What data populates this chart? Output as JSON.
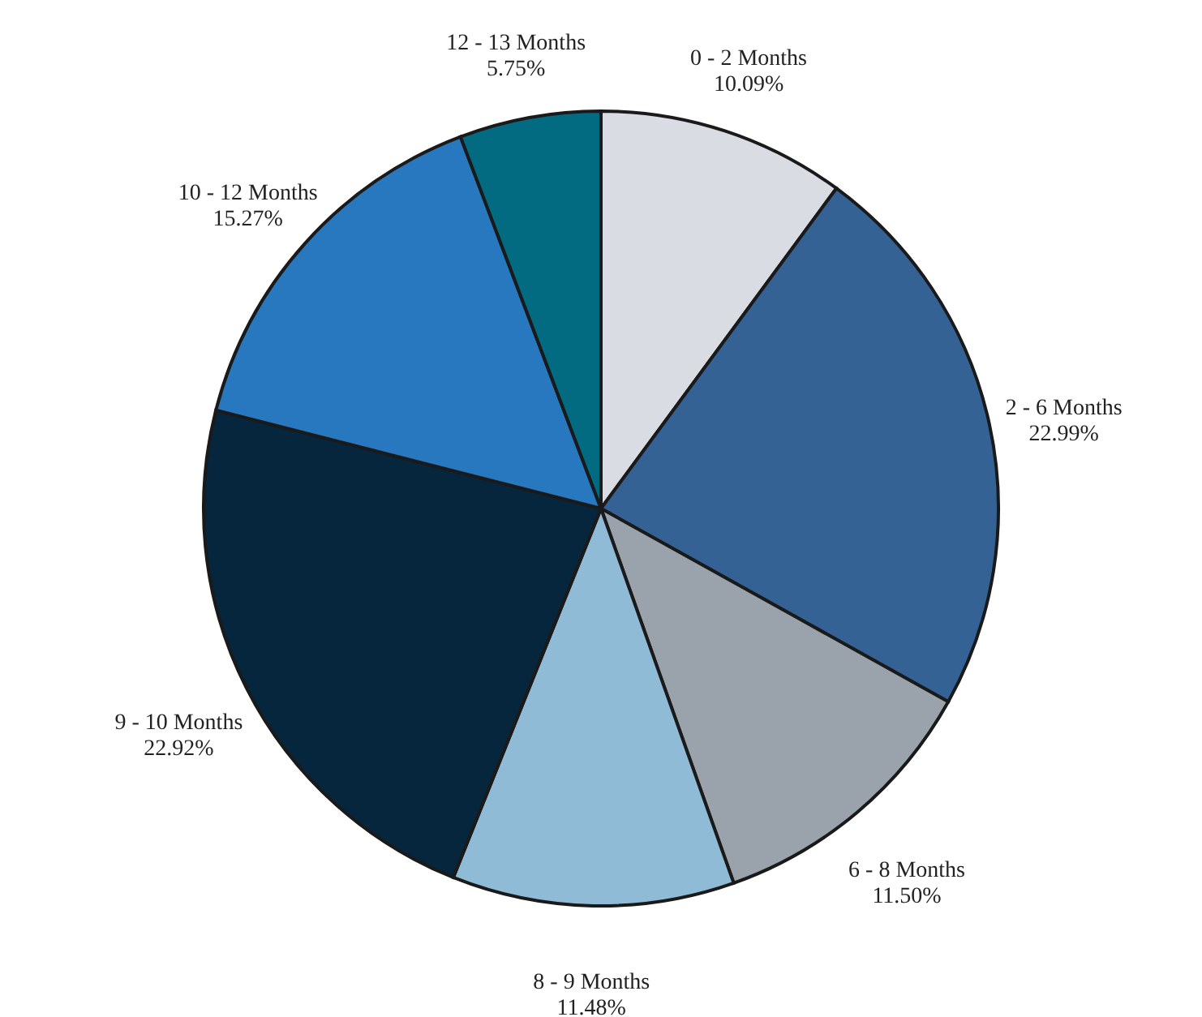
{
  "chart_data": {
    "type": "pie",
    "categories": [
      "0 - 2 Months",
      "2 - 6 Months",
      "6 - 8 Months",
      "8 - 9 Months",
      "9 - 10 Months",
      "10 - 12 Months",
      "12 - 13 Months"
    ],
    "values": [
      10.09,
      22.99,
      11.5,
      11.48,
      22.92,
      15.27,
      5.75
    ],
    "colors": [
      "#d9dce2",
      "#356295",
      "#9aa2ab",
      "#8fbbd7",
      "#06263d",
      "#2878bf",
      "#036b81"
    ],
    "value_labels": [
      "10.09%",
      "22.99%",
      "11.50%",
      "11.48%",
      "22.92%",
      "15.27%",
      "5.75%"
    ]
  }
}
